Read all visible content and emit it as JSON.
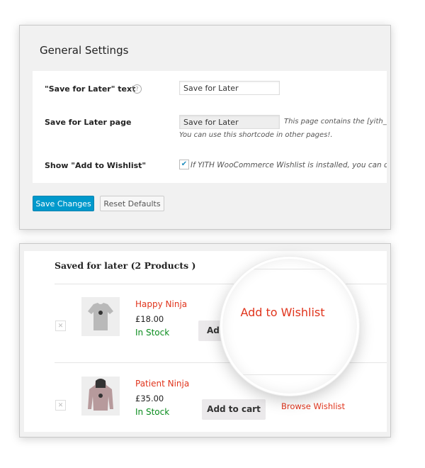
{
  "settings": {
    "title": "General Settings",
    "rows": [
      {
        "label": "\"Save for Later\" text",
        "value": "Save for Later",
        "help_icon": "question-circle-icon"
      },
      {
        "label": "Save for Later page",
        "value": "Save for Later",
        "description": "This page contains the [yith_ws",
        "description2": "You can use this shortcode in other pages!."
      },
      {
        "label": "Show \"Add to Wishlist\"",
        "checked": true,
        "description": "If YITH WooCommerce Wishlist is installed, you can dis"
      }
    ],
    "save_label": "Save Changes",
    "reset_label": "Reset Defaults",
    "accent": "#0099cc"
  },
  "saved": {
    "heading": "Saved for later (2 Products )",
    "products": [
      {
        "name": "Happy Ninja",
        "price": "£18.00",
        "stock": "In Stock",
        "button": "Add to cart"
      },
      {
        "name": "Patient Ninja",
        "price": "£35.00",
        "stock": "In Stock",
        "button": "Add to cart",
        "link": "Browse Wishlist"
      }
    ],
    "magnified_label": "Add to Wishlist",
    "link_color": "#e0341c",
    "stock_color": "#0a8c1e"
  }
}
